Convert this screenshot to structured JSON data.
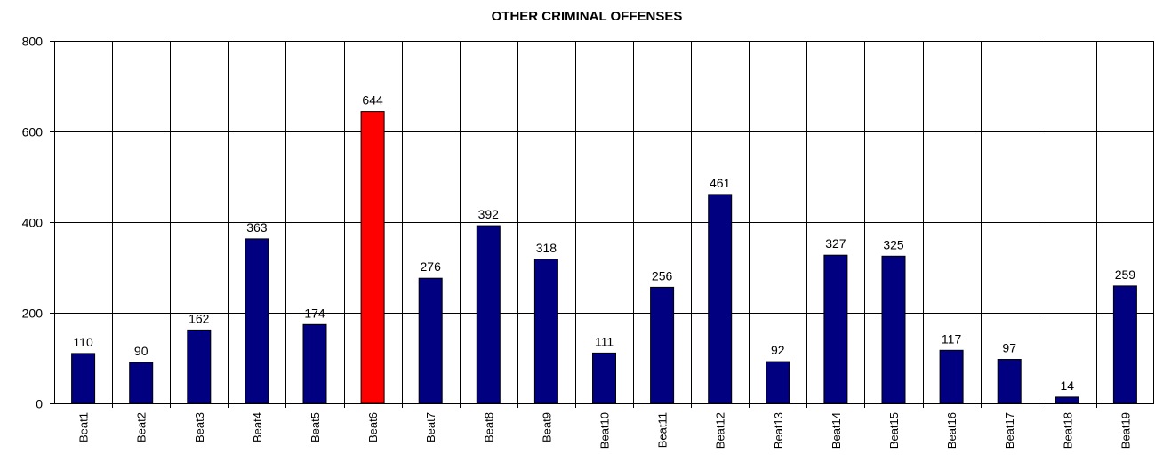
{
  "chart_data": {
    "type": "bar",
    "title": "OTHER CRIMINAL OFFENSES",
    "xlabel": "",
    "ylabel": "",
    "categories": [
      "Beat1",
      "Beat2",
      "Beat3",
      "Beat4",
      "Beat5",
      "Beat6",
      "Beat7",
      "Beat8",
      "Beat9",
      "Beat10",
      "Beat11",
      "Beat12",
      "Beat13",
      "Beat14",
      "Beat15",
      "Beat16",
      "Beat17",
      "Beat18",
      "Beat19"
    ],
    "values": [
      110,
      90,
      162,
      363,
      174,
      644,
      276,
      392,
      318,
      111,
      256,
      461,
      92,
      327,
      325,
      117,
      97,
      14,
      259
    ],
    "ylim": [
      0,
      800
    ],
    "yticks": [
      0,
      200,
      400,
      600,
      800
    ],
    "grid": "major gridlines on both axes",
    "legend": "none",
    "data_labels": "shown above bars",
    "colors": {
      "default_bar": "#000080",
      "highlight_bar": "#ff0000",
      "highlight_category": "Beat6"
    }
  }
}
